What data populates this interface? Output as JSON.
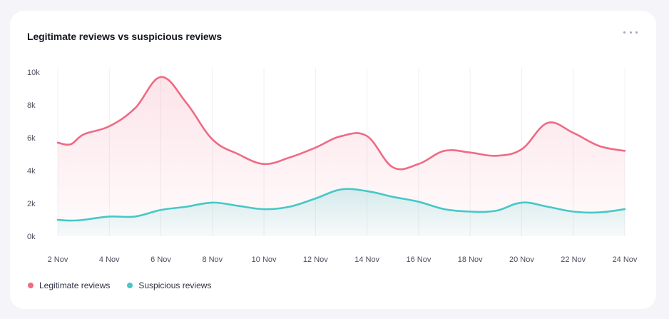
{
  "card": {
    "title": "Legitimate reviews vs suspicious reviews",
    "menu_icon": "more-horizontal-icon"
  },
  "chart_data": {
    "type": "area",
    "title": "Legitimate reviews vs suspicious reviews",
    "xlabel": "",
    "ylabel": "",
    "x": [
      2,
      2.5,
      3,
      4,
      5,
      6,
      7,
      8,
      9,
      10,
      11,
      12,
      13,
      14,
      15,
      16,
      17,
      18,
      19,
      20,
      21,
      22,
      23,
      24
    ],
    "x_tick_values": [
      2,
      4,
      6,
      8,
      10,
      12,
      14,
      16,
      18,
      20,
      22,
      24
    ],
    "x_tick_labels": [
      "2 Nov",
      "4 Nov",
      "6 Nov",
      "8 Nov",
      "10 Nov",
      "12 Nov",
      "14 Nov",
      "16 Nov",
      "18 Nov",
      "20 Nov",
      "22 Nov",
      "24 Nov"
    ],
    "y_tick_values": [
      0,
      2000,
      4000,
      6000,
      8000,
      10000
    ],
    "y_tick_labels": [
      "0k",
      "2k",
      "4k",
      "6k",
      "8k",
      "10k"
    ],
    "ylim": [
      0,
      10000
    ],
    "xlim": [
      2,
      24
    ],
    "grid": "vertical",
    "legend": "bottom-left",
    "series": [
      {
        "name": "Legitimate reviews",
        "color": "#ef6a84",
        "values": [
          5700,
          5600,
          6200,
          6700,
          7800,
          9700,
          8100,
          5900,
          5000,
          4400,
          4800,
          5400,
          6100,
          6100,
          4200,
          4400,
          5200,
          5100,
          4900,
          5300,
          6900,
          6300,
          5500,
          5200
        ]
      },
      {
        "name": "Suspicious reviews",
        "color": "#47c7c7",
        "values": [
          1000,
          950,
          1000,
          1200,
          1200,
          1600,
          1800,
          2050,
          1850,
          1650,
          1800,
          2300,
          2850,
          2750,
          2400,
          2100,
          1650,
          1500,
          1550,
          2050,
          1800,
          1500,
          1450,
          1650
        ]
      }
    ]
  }
}
